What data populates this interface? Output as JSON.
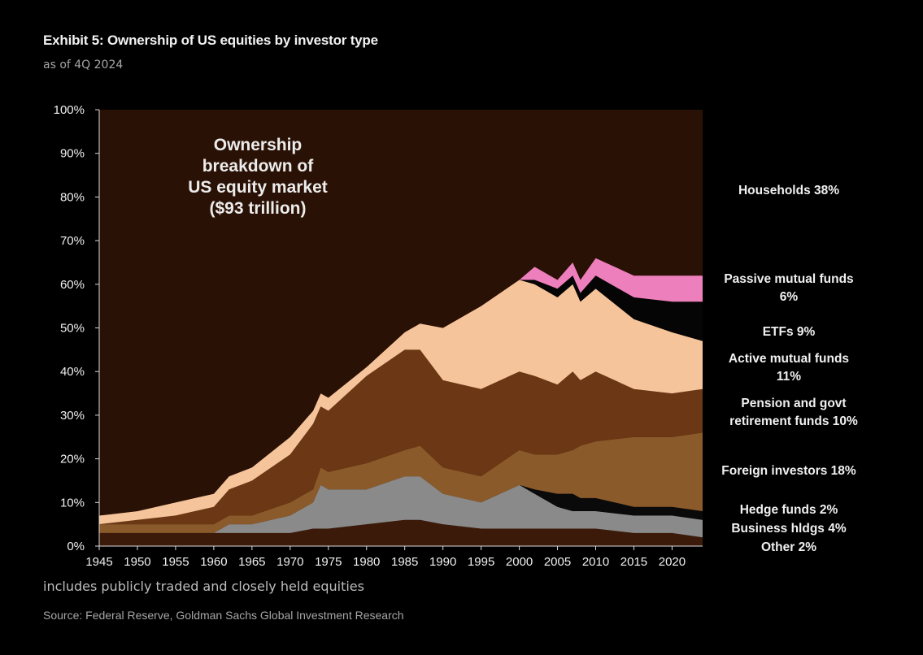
{
  "header": {
    "title": "Exhibit 5: Ownership of US equities by investor type",
    "subtitle": "as of 4Q 2024",
    "note": "includes publicly traded and closely held equities",
    "source": "Source: Federal Reserve, Goldman Sachs Global Investment Research"
  },
  "chart_data": {
    "type": "area",
    "stacked": true,
    "title": "Exhibit 5: Ownership of US equities by investor type",
    "subtitle": "as of 4Q 2024",
    "annotation": [
      "Ownership",
      "breakdown  of",
      "US equity market",
      "($93 trillion)"
    ],
    "x": [
      1945,
      1950,
      1955,
      1960,
      1962,
      1965,
      1970,
      1973,
      1974,
      1975,
      1980,
      1985,
      1987,
      1990,
      1995,
      2000,
      2002,
      2005,
      2007,
      2008,
      2010,
      2015,
      2020,
      2024
    ],
    "xticks": [
      1945,
      1950,
      1955,
      1960,
      1965,
      1970,
      1975,
      1980,
      1985,
      1990,
      1995,
      2000,
      2005,
      2010,
      2015,
      2020
    ],
    "ylim": [
      0,
      100
    ],
    "yticks": [
      "0%",
      "10%",
      "20%",
      "30%",
      "40%",
      "50%",
      "60%",
      "70%",
      "80%",
      "90%",
      "100%"
    ],
    "series": [
      {
        "name": "Other",
        "label": "Other 2%",
        "color": "#3b1a0a",
        "values": [
          3,
          3,
          3,
          3,
          3,
          3,
          3,
          4,
          4,
          4,
          5,
          6,
          6,
          5,
          4,
          4,
          4,
          4,
          4,
          4,
          4,
          3,
          3,
          2
        ]
      },
      {
        "name": "Business hldgs",
        "label": "Business hldgs 4%",
        "color": "#8a8a8a",
        "values": [
          0,
          0,
          0,
          0,
          2,
          2,
          4,
          6,
          10,
          9,
          8,
          10,
          10,
          7,
          6,
          10,
          8,
          5,
          4,
          4,
          4,
          4,
          4,
          4
        ]
      },
      {
        "name": "Hedge funds",
        "label": "Hedge funds 2%",
        "color": "#0a0a0a",
        "values": [
          0,
          0,
          0,
          0,
          0,
          0,
          0,
          0,
          0,
          0,
          0,
          0,
          0,
          0,
          0,
          0,
          1,
          3,
          4,
          3,
          3,
          2,
          2,
          2
        ]
      },
      {
        "name": "Foreign investors",
        "label": "Foreign investors 18%",
        "color": "#8b5a2b",
        "values": [
          2,
          2,
          2,
          2,
          2,
          2,
          3,
          3,
          4,
          4,
          6,
          6,
          7,
          6,
          6,
          8,
          8,
          9,
          10,
          12,
          13,
          16,
          16,
          18
        ]
      },
      {
        "name": "Pension and govt retirement funds",
        "label": "Pension and govt retirement funds 10%",
        "color": "#6b3714",
        "values": [
          0,
          1,
          2,
          4,
          6,
          8,
          11,
          15,
          14,
          14,
          20,
          23,
          22,
          20,
          20,
          18,
          18,
          16,
          18,
          15,
          16,
          11,
          10,
          10
        ]
      },
      {
        "name": "Active mutual funds",
        "label": "Active mutual funds 11%",
        "color": "#f6c49a",
        "values": [
          2,
          2,
          3,
          3,
          3,
          3,
          4,
          3,
          3,
          3,
          2,
          4,
          6,
          12,
          19,
          21,
          21,
          20,
          20,
          18,
          19,
          16,
          14,
          11
        ]
      },
      {
        "name": "ETFs",
        "label": "ETFs 9%",
        "color": "#050505",
        "values": [
          0,
          0,
          0,
          0,
          0,
          0,
          0,
          0,
          0,
          0,
          0,
          0,
          0,
          0,
          0,
          0,
          1,
          2,
          2,
          2,
          3,
          5,
          7,
          9
        ]
      },
      {
        "name": "Passive mutual funds",
        "label": "Passive mutual funds 6%",
        "color": "#ee7fbd",
        "values": [
          0,
          0,
          0,
          0,
          0,
          0,
          0,
          0,
          0,
          0,
          0,
          0,
          0,
          0,
          0,
          0,
          3,
          2,
          3,
          3,
          4,
          5,
          6,
          6
        ]
      },
      {
        "name": "Households",
        "label": "Households 38%",
        "color": "#2a1105",
        "values": [
          93,
          92,
          90,
          88,
          84,
          82,
          75,
          69,
          65,
          66,
          59,
          51,
          49,
          50,
          45,
          39,
          36,
          39,
          35,
          39,
          34,
          38,
          38,
          38
        ]
      }
    ],
    "legend_position": "right"
  }
}
